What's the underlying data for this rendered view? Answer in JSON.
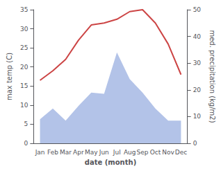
{
  "chart_data": {
    "type": "line",
    "xlabel": "date (month)",
    "ylabel": "max temp (C)",
    "y2label": "med. precipitation (kg/m2)",
    "categories": [
      "Jan",
      "Feb",
      "Mar",
      "Apr",
      "May",
      "Jun",
      "Jul",
      "Aug",
      "Sep",
      "Oct",
      "Nov",
      "Dec"
    ],
    "series": [
      {
        "type": "area",
        "axis": "y2",
        "color": "#b3c3e8",
        "values": [
          9.0,
          13.0,
          8.5,
          14.0,
          19.0,
          18.5,
          34.0,
          24.0,
          19.0,
          13.0,
          8.5,
          8.5
        ]
      },
      {
        "type": "line",
        "color": "#cc4444",
        "values": [
          16.5,
          19.0,
          22.0,
          27.0,
          31.0,
          31.5,
          32.5,
          34.5,
          35.0,
          31.5,
          26.0,
          18.0
        ]
      }
    ],
    "ylim": [
      0,
      35
    ],
    "yticks": [
      0,
      5,
      10,
      15,
      20,
      25,
      30,
      35
    ],
    "y2lim": [
      0,
      50
    ],
    "y2ticks": [
      0,
      10,
      20,
      30,
      40,
      50
    ],
    "grid": false
  }
}
